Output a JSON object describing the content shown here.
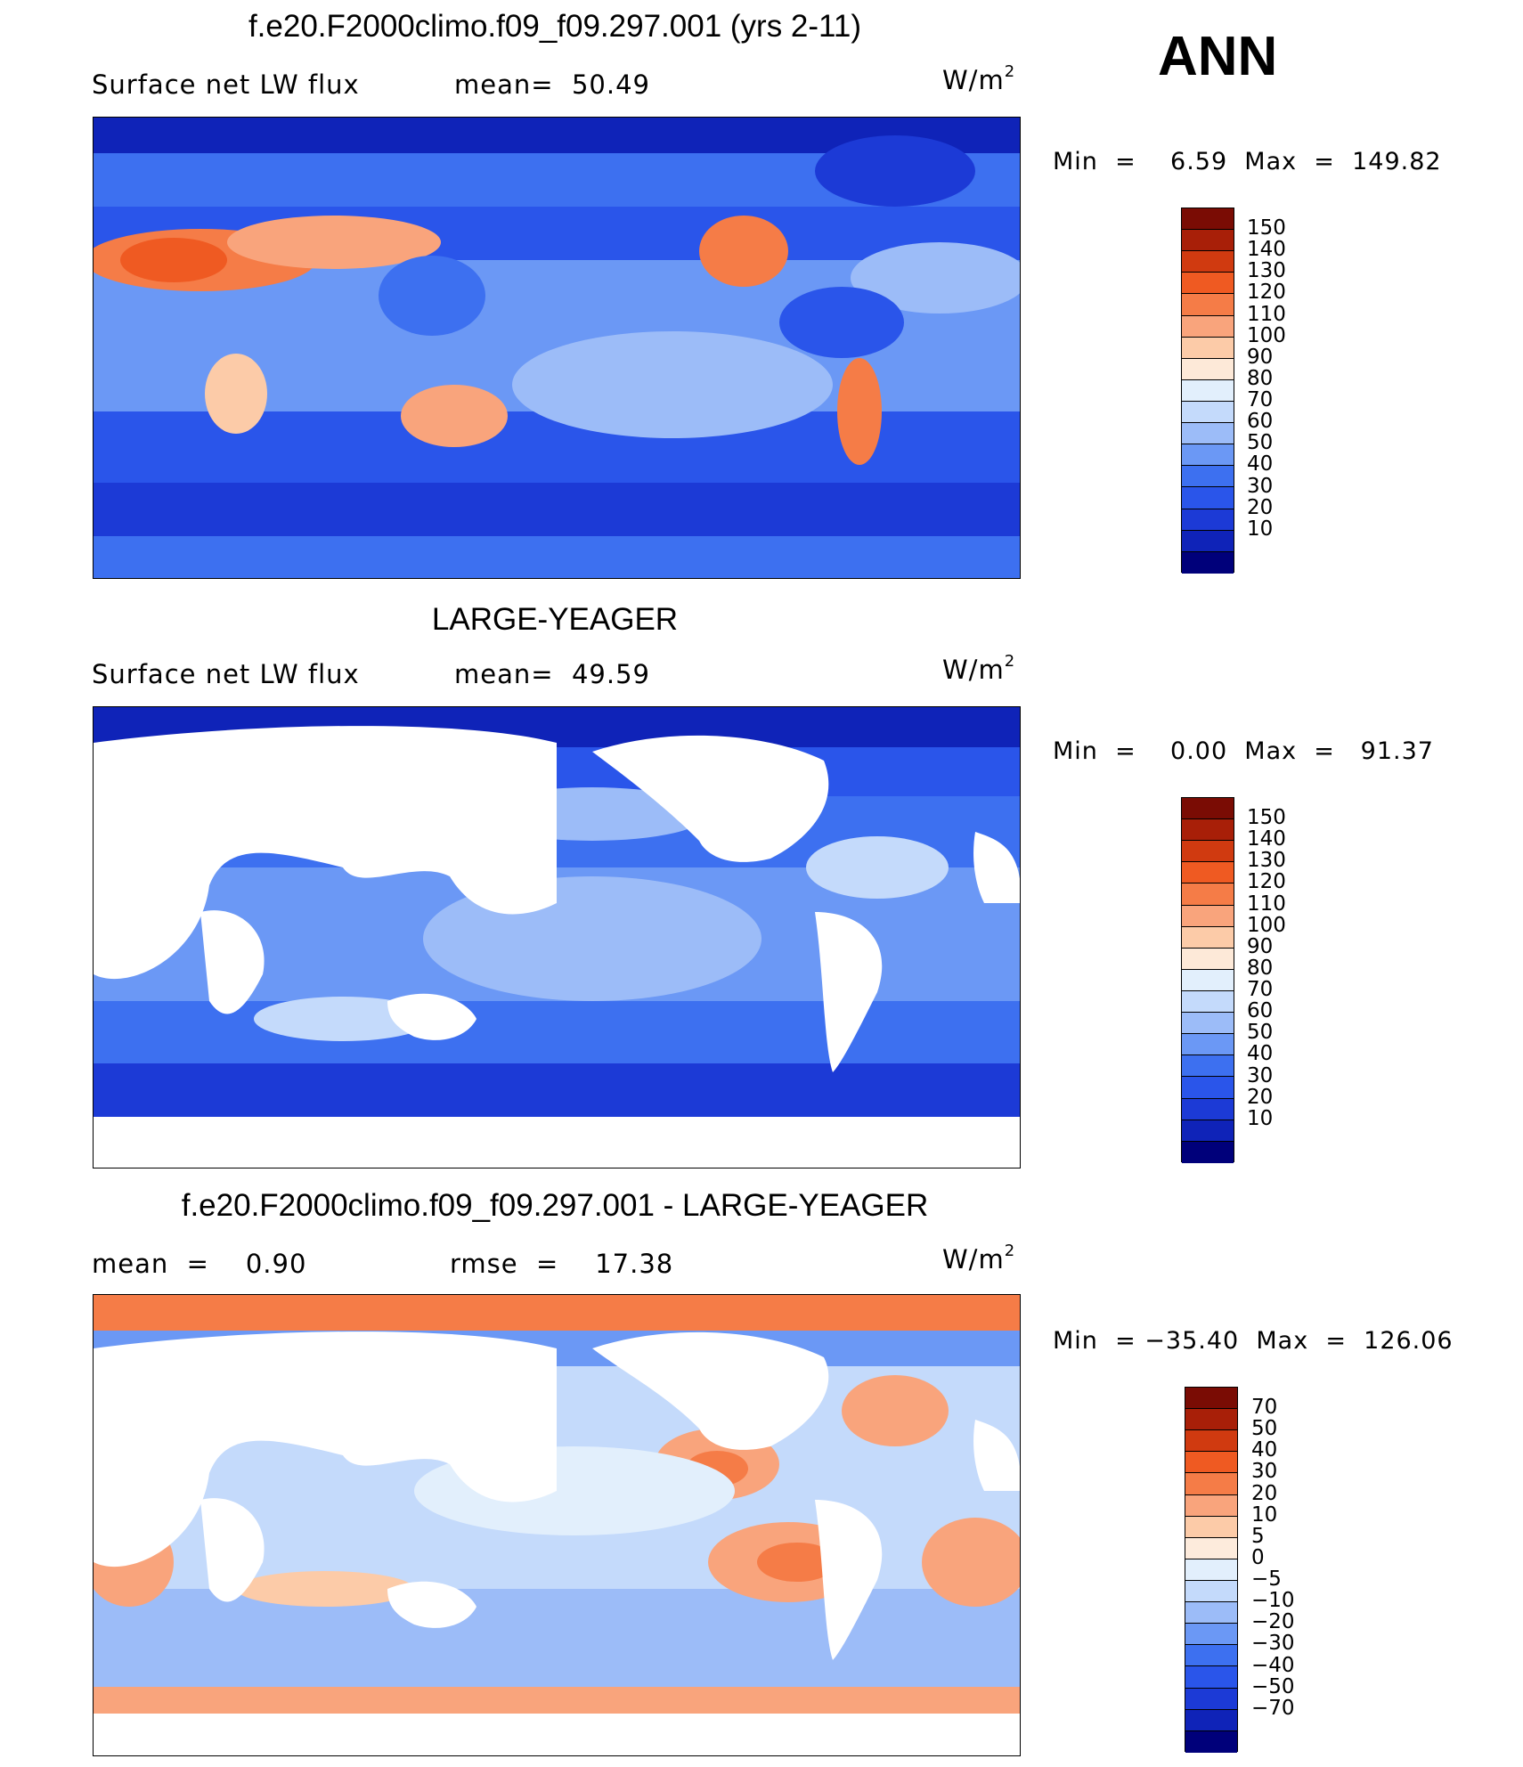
{
  "season": "ANN",
  "colors": {
    "abs_scale": [
      "#00007a",
      "#0f23b8",
      "#1c3ad6",
      "#2a55ea",
      "#3d70f0",
      "#6b98f5",
      "#9cbcf8",
      "#c4dafb",
      "#e2effc",
      "#fde9d8",
      "#fccba8",
      "#f9a47c",
      "#f57c47",
      "#ef5a22",
      "#d03a10",
      "#a81f08",
      "#7a0c04"
    ],
    "diff_scale": [
      "#00007a",
      "#0f23b8",
      "#1c3ad6",
      "#2a55ea",
      "#3d70f0",
      "#6b98f5",
      "#9cbcf8",
      "#c4dafb",
      "#e2effc",
      "#fdebdc",
      "#fccba8",
      "#f9a47c",
      "#f57c47",
      "#ef5a22",
      "#d03a10",
      "#a81f08",
      "#7a0c04"
    ],
    "land_white": "#ffffff"
  },
  "panels": [
    {
      "title": "f.e20.F2000climo.f09_f09.297.001 (yrs 2-11)",
      "left_text": "Surface net LW flux",
      "mid_text": "mean=  50.49",
      "units_base": "W/m",
      "units_sup": "2",
      "minmax": "Min  =    6.59  Max  =  149.82",
      "levels": [
        "150",
        "140",
        "130",
        "120",
        "110",
        "100",
        "90",
        "80",
        "70",
        "60",
        "50",
        "40",
        "30",
        "20",
        "10"
      ],
      "field": "model"
    },
    {
      "title": "LARGE-YEAGER",
      "left_text": "Surface net LW flux",
      "mid_text": "mean=  49.59",
      "units_base": "W/m",
      "units_sup": "2",
      "minmax": "Min  =    0.00  Max  =   91.37",
      "levels": [
        "150",
        "140",
        "130",
        "120",
        "110",
        "100",
        "90",
        "80",
        "70",
        "60",
        "50",
        "40",
        "30",
        "20",
        "10"
      ],
      "field": "obs"
    },
    {
      "title": "f.e20.F2000climo.f09_f09.297.001 - LARGE-YEAGER",
      "left_text": "mean  =    0.90",
      "mid_text": "rmse  =    17.38",
      "units_base": "W/m",
      "units_sup": "2",
      "minmax": "Min  = −35.40  Max  =  126.06",
      "levels": [
        "70",
        "50",
        "40",
        "30",
        "20",
        "10",
        "5",
        "0",
        "−5",
        "−10",
        "−20",
        "−30",
        "−40",
        "−50",
        "−70"
      ],
      "field": "diff"
    }
  ]
}
